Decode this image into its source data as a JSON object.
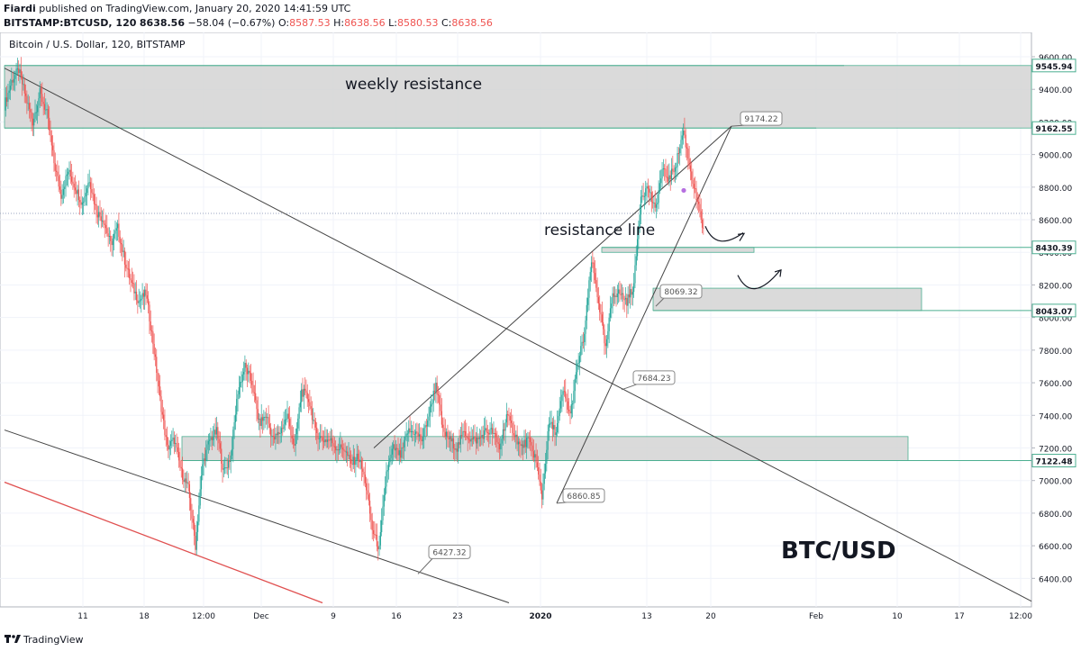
{
  "header": {
    "publisher_name": "Fiardi",
    "publish_text": "published on TradingView.com, January 20, 2020 14:41:59 UTC",
    "symbol": "BITSTAMP:BTCUSD, 120",
    "last": "8638.56",
    "change": "−58.04 (−0.67%)",
    "open_label": "O:",
    "open": "8587.53",
    "high_label": "H:",
    "high": "8638.56",
    "low_label": "L:",
    "low": "8580.53",
    "close_label": "C:",
    "close": "8638.56"
  },
  "footer": {
    "brand": "TradingView"
  },
  "colors": {
    "up": "#26a69a",
    "down": "#ef5350",
    "zone_fill": "#d3d3d3",
    "zone_border": "#4caf91",
    "trendline": "#444444",
    "red_line": "#e05050"
  },
  "chart_data": {
    "type": "candlestick",
    "title": "Bitcoin / U.S. Dollar, 120, BITSTAMP",
    "watermark": "BTC/USD",
    "ylim": [
      6250,
      9700
    ],
    "y_ticks": [
      "9600.00",
      "9400.00",
      "9200.00",
      "9000.00",
      "8800.00",
      "8600.00",
      "8400.00",
      "8200.00",
      "8000.00",
      "7800.00",
      "7600.00",
      "7400.00",
      "7200.00",
      "7000.00",
      "6800.00",
      "6600.00",
      "6400.00"
    ],
    "x_ticks": [
      "11",
      "18",
      "12:00",
      "Dec",
      "9",
      "16",
      "23",
      "2020",
      "13",
      "20",
      "Feb",
      "10",
      "17",
      "12:00"
    ],
    "price_labels": [
      {
        "label": "9545.94",
        "value": 9545.94
      },
      {
        "label": "9162.55",
        "value": 9162.55
      },
      {
        "label": "8430.39",
        "value": 8430.39
      },
      {
        "label": "8043.07",
        "value": 8043.07
      },
      {
        "label": "7122.48",
        "value": 7122.48
      }
    ],
    "callouts": [
      {
        "label": "9174.22",
        "value": 9174.22
      },
      {
        "label": "8069.32",
        "value": 8069.32
      },
      {
        "label": "7684.23",
        "value": 7684.23
      },
      {
        "label": "6860.85",
        "value": 6860.85
      },
      {
        "label": "6427.32",
        "value": 6427.32
      }
    ],
    "annotations": [
      {
        "label": "weekly resistance"
      },
      {
        "label": "resistance line"
      }
    ],
    "zones": [
      {
        "name": "weekly resistance",
        "from": 9162.55,
        "to": 9545.94
      },
      {
        "name": "zone-8430",
        "from": 8400,
        "to": 8430.39
      },
      {
        "name": "zone-8100",
        "from": 8043.07,
        "to": 8180
      },
      {
        "name": "zone-7200",
        "from": 7122.48,
        "to": 7270
      }
    ],
    "close_path": [
      [
        0,
        9300
      ],
      [
        1,
        9450
      ],
      [
        2,
        9520
      ],
      [
        3,
        9350
      ],
      [
        4,
        9200
      ],
      [
        5,
        9380
      ],
      [
        6,
        9250
      ],
      [
        7,
        8950
      ],
      [
        8,
        8750
      ],
      [
        9,
        8900
      ],
      [
        10,
        8800
      ],
      [
        11,
        8700
      ],
      [
        12,
        8850
      ],
      [
        13,
        8650
      ],
      [
        14,
        8600
      ],
      [
        15,
        8450
      ],
      [
        16,
        8550
      ],
      [
        17,
        8350
      ],
      [
        18,
        8200
      ],
      [
        19,
        8100
      ],
      [
        20,
        8150
      ],
      [
        21,
        7850
      ],
      [
        22,
        7500
      ],
      [
        23,
        7200
      ],
      [
        24,
        7250
      ],
      [
        25,
        7050
      ],
      [
        26,
        6950
      ],
      [
        27,
        6600
      ],
      [
        28,
        7100
      ],
      [
        29,
        7250
      ],
      [
        30,
        7300
      ],
      [
        31,
        7050
      ],
      [
        32,
        7150
      ],
      [
        33,
        7550
      ],
      [
        34,
        7700
      ],
      [
        35,
        7600
      ],
      [
        36,
        7350
      ],
      [
        37,
        7400
      ],
      [
        38,
        7250
      ],
      [
        39,
        7300
      ],
      [
        40,
        7400
      ],
      [
        41,
        7200
      ],
      [
        42,
        7550
      ],
      [
        43,
        7500
      ],
      [
        44,
        7300
      ],
      [
        45,
        7250
      ],
      [
        46,
        7250
      ],
      [
        47,
        7200
      ],
      [
        48,
        7200
      ],
      [
        49,
        7100
      ],
      [
        50,
        7150
      ],
      [
        51,
        7000
      ],
      [
        52,
        6700
      ],
      [
        53,
        6580
      ],
      [
        54,
        7050
      ],
      [
        55,
        7200
      ],
      [
        56,
        7150
      ],
      [
        57,
        7300
      ],
      [
        58,
        7300
      ],
      [
        59,
        7250
      ],
      [
        60,
        7400
      ],
      [
        61,
        7600
      ],
      [
        62,
        7300
      ],
      [
        63,
        7250
      ],
      [
        64,
        7200
      ],
      [
        65,
        7300
      ],
      [
        66,
        7250
      ],
      [
        67,
        7250
      ],
      [
        68,
        7300
      ],
      [
        69,
        7300
      ],
      [
        70,
        7200
      ],
      [
        71,
        7400
      ],
      [
        72,
        7300
      ],
      [
        73,
        7200
      ],
      [
        74,
        7250
      ],
      [
        75,
        7150
      ],
      [
        76,
        6900
      ],
      [
        77,
        7350
      ],
      [
        78,
        7300
      ],
      [
        79,
        7550
      ],
      [
        80,
        7400
      ],
      [
        81,
        7700
      ],
      [
        82,
        7900
      ],
      [
        83,
        8350
      ],
      [
        84,
        8100
      ],
      [
        85,
        7800
      ],
      [
        86,
        8150
      ],
      [
        87,
        8150
      ],
      [
        88,
        8100
      ],
      [
        89,
        8200
      ],
      [
        90,
        8750
      ],
      [
        91,
        8800
      ],
      [
        92,
        8650
      ],
      [
        93,
        8900
      ],
      [
        94,
        8850
      ],
      [
        95,
        8950
      ],
      [
        96,
        9150
      ],
      [
        97,
        8900
      ],
      [
        98,
        8700
      ],
      [
        99,
        8500
      ]
    ]
  }
}
